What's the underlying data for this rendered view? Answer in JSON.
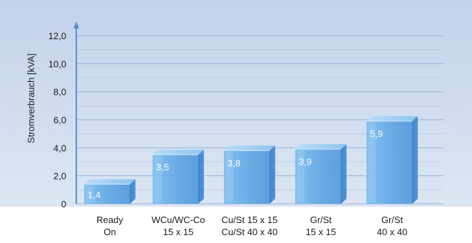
{
  "chart_data": {
    "type": "bar",
    "title": "",
    "xlabel": "",
    "ylabel": "Stromverbrauch [kVA]",
    "ylim": [
      0,
      12
    ],
    "yticks": [
      0,
      2,
      4,
      6,
      8,
      10,
      12
    ],
    "ytick_labels": [
      "0",
      "2,0",
      "4,0",
      "6,0",
      "8,0",
      "10,0",
      "12,0"
    ],
    "grid": true,
    "categories": [
      [
        "Ready",
        "On"
      ],
      [
        "WCu/WC-Co",
        "15 x 15"
      ],
      [
        "Cu/St 15 x 15",
        "Cu/St 40 x 40"
      ],
      [
        "Gr/St",
        "15 x 15"
      ],
      [
        "Gr/St",
        "40 x 40"
      ]
    ],
    "values": [
      1.4,
      3.5,
      3.8,
      3.9,
      5.9
    ],
    "value_labels": [
      "1,4",
      "3,5",
      "3,8",
      "3,9",
      "5,9"
    ]
  },
  "colors": {
    "panel_top": "#c3d3ea",
    "panel_bottom": "#dbe5f3",
    "bar_front": "#6aaee6",
    "bar_side": "#3f86cf",
    "bar_top": "#a8d3f5",
    "axis": "#5b8fd0",
    "grid": "#8aa9d6"
  }
}
